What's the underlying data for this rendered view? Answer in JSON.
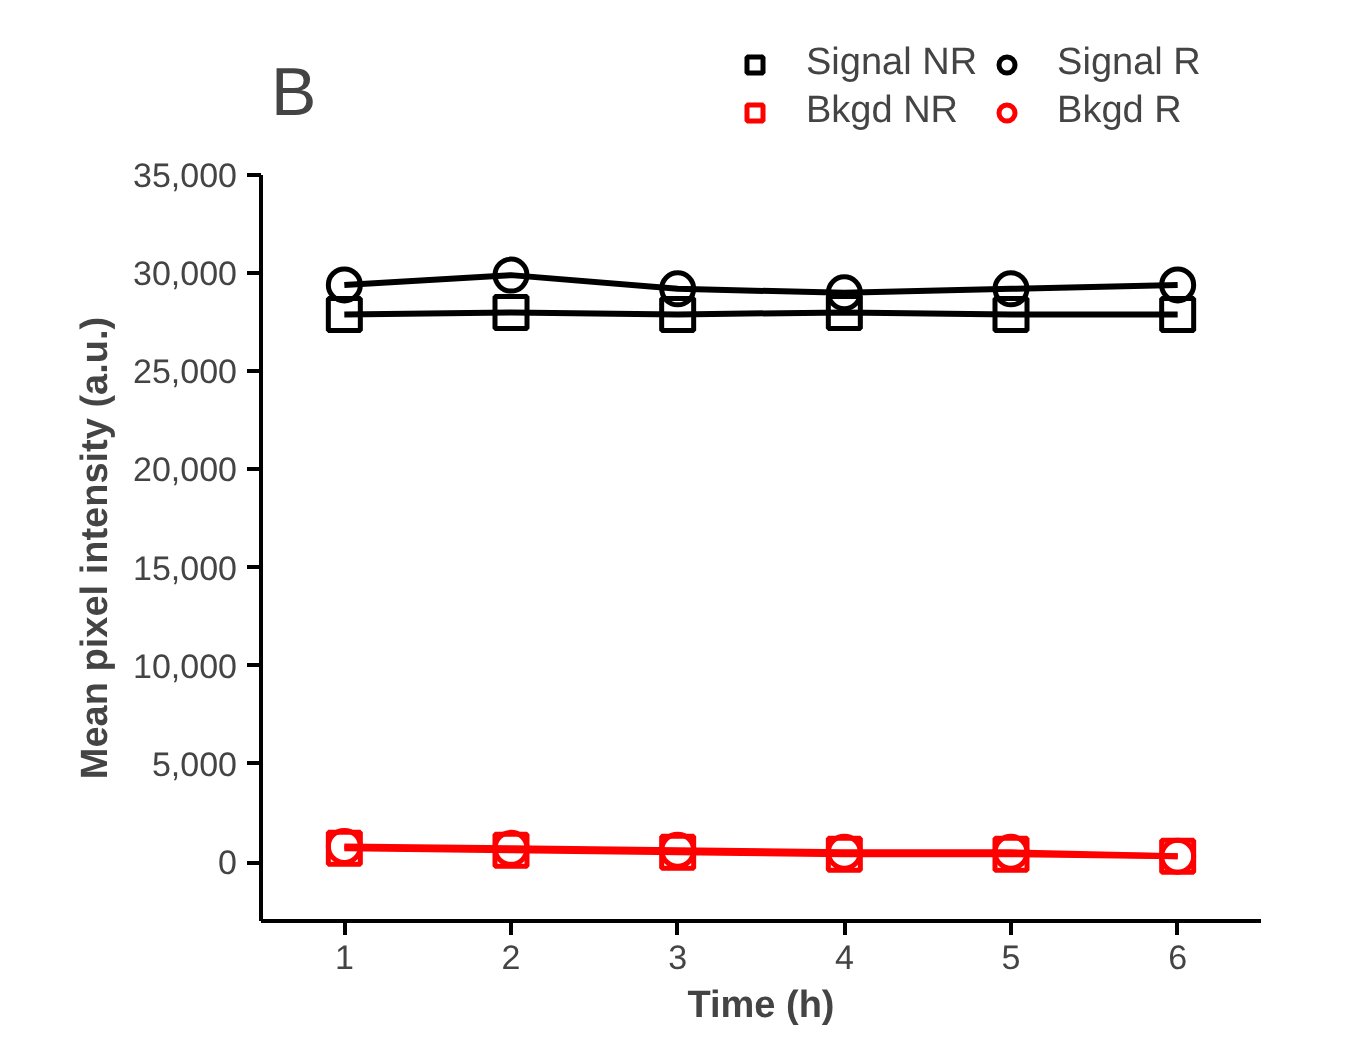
{
  "chart_data": {
    "type": "line",
    "xlabel": "Time (h)",
    "ylabel": "Mean pixel intensity (a.u.)",
    "annotations": [
      "B"
    ],
    "x": [
      1,
      2,
      3,
      4,
      5,
      6
    ],
    "series": [
      {
        "name": "Signal NR",
        "color": "#000000",
        "marker": "square",
        "values": [
          27900,
          28000,
          27900,
          28000,
          27900,
          27900
        ]
      },
      {
        "name": "Signal R",
        "color": "#000000",
        "marker": "circle",
        "values": [
          29400,
          29900,
          29200,
          29000,
          29200,
          29400
        ]
      },
      {
        "name": "Bkgd NR",
        "color": "#ff0000",
        "marker": "square",
        "values": [
          700,
          600,
          500,
          400,
          400,
          300
        ]
      },
      {
        "name": "Bkgd R",
        "color": "#ff0000",
        "marker": "circle",
        "values": [
          800,
          700,
          600,
          500,
          500,
          300
        ]
      }
    ],
    "xlim": [
      0.5,
      6.5
    ],
    "ylim": [
      -3000,
      35000
    ],
    "xticks": [
      1,
      2,
      3,
      4,
      5,
      6
    ],
    "yticks": [
      {
        "value": 0,
        "label": "0"
      },
      {
        "value": 5000,
        "label": "5,000"
      },
      {
        "value": 10000,
        "label": "10,000"
      },
      {
        "value": 15000,
        "label": "15,000"
      },
      {
        "value": 20000,
        "label": "20,000"
      },
      {
        "value": 25000,
        "label": "25,000"
      },
      {
        "value": 30000,
        "label": "30,000"
      },
      {
        "value": 35000,
        "label": "35,000"
      }
    ],
    "grid": false,
    "legend": "top",
    "line_style": "solid"
  }
}
